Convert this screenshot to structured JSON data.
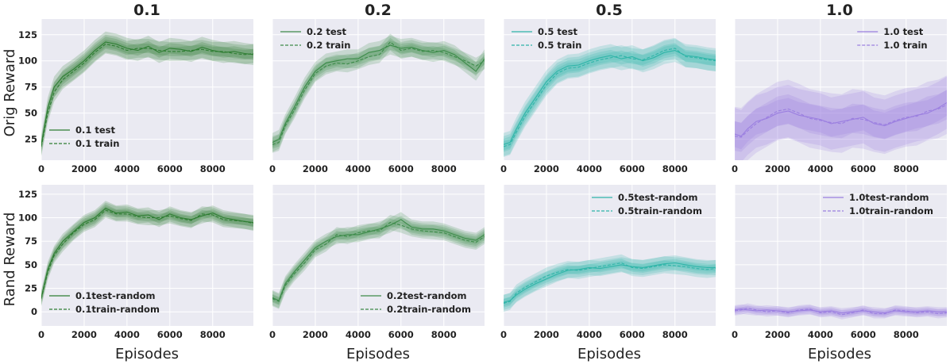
{
  "chart_data": {
    "type": "line",
    "layout": "2x4 grid",
    "column_titles": [
      "0.1",
      "0.2",
      "0.5",
      "1.0"
    ],
    "row_ylabels": [
      "Orig Reward",
      "Rand Reward"
    ],
    "xlabel": "Episodes",
    "xlim": [
      0,
      9900
    ],
    "x_ticks": [
      0,
      2000,
      4000,
      6000,
      8000
    ],
    "x_tick_labels": [
      "0",
      "2000",
      "4000",
      "6000",
      "8000"
    ],
    "rows": [
      {
        "ylim": [
          5,
          140
        ],
        "y_ticks": [
          25,
          50,
          75,
          100,
          125
        ],
        "y_tick_labels": [
          "25",
          "50",
          "75",
          "100",
          "125"
        ]
      },
      {
        "ylim": [
          -15,
          135
        ],
        "y_ticks": [
          0,
          25,
          50,
          75,
          100,
          125
        ],
        "y_tick_labels": [
          "0",
          "25",
          "50",
          "75",
          "100",
          "125"
        ]
      }
    ],
    "panels": [
      {
        "row": 0,
        "col": 0,
        "color": "#2e7d32",
        "legend_position": "bottom-left",
        "series": [
          {
            "name": "0.1 test",
            "style": "solid",
            "x": [
              0,
              300,
              600,
              1000,
              1500,
              2000,
              2500,
              3000,
              3500,
              4000,
              4500,
              5000,
              5500,
              6000,
              6500,
              7000,
              7500,
              8000,
              8500,
              9000,
              9500,
              9900
            ],
            "y": [
              20,
              55,
              75,
              85,
              92,
              100,
              110,
              118,
              116,
              112,
              110,
              114,
              108,
              112,
              111,
              109,
              113,
              110,
              108,
              109,
              107,
              106
            ],
            "band": 10
          },
          {
            "name": "0.1 train",
            "style": "dashed",
            "x": [
              0,
              300,
              600,
              1000,
              1500,
              2000,
              2500,
              3000,
              3500,
              4000,
              4500,
              5000,
              5500,
              6000,
              6500,
              7000,
              7500,
              8000,
              8500,
              9000,
              9500,
              9900
            ],
            "y": [
              18,
              50,
              70,
              82,
              90,
              98,
              108,
              116,
              114,
              110,
              112,
              112,
              110,
              109,
              109,
              110,
              111,
              109,
              109,
              107,
              106,
              107
            ],
            "band": 9
          }
        ]
      },
      {
        "row": 0,
        "col": 1,
        "color": "#3d8b4a",
        "legend_position": "top-left",
        "series": [
          {
            "name": "0.2 test",
            "style": "solid",
            "x": [
              0,
              300,
              600,
              1000,
              1500,
              2000,
              2500,
              3000,
              3500,
              4000,
              4500,
              5000,
              5500,
              6000,
              6500,
              7000,
              7500,
              8000,
              8500,
              9000,
              9500,
              9900
            ],
            "y": [
              22,
              25,
              40,
              55,
              75,
              90,
              98,
              100,
              102,
              102,
              108,
              110,
              115,
              112,
              113,
              110,
              108,
              110,
              106,
              98,
              90,
              102
            ],
            "band": 9
          },
          {
            "name": "0.2 train",
            "style": "dashed",
            "x": [
              0,
              300,
              600,
              1000,
              1500,
              2000,
              2500,
              3000,
              3500,
              4000,
              4500,
              5000,
              5500,
              6000,
              6500,
              7000,
              7500,
              8000,
              8500,
              9000,
              9500,
              9900
            ],
            "y": [
              20,
              22,
              38,
              52,
              72,
              88,
              95,
              98,
              97,
              100,
              104,
              106,
              118,
              110,
              112,
              109,
              110,
              108,
              104,
              100,
              95,
              100
            ],
            "band": 8
          }
        ]
      },
      {
        "row": 0,
        "col": 2,
        "color": "#2fb5a8",
        "legend_position": "top-left",
        "series": [
          {
            "name": "0.5 test",
            "style": "solid",
            "x": [
              0,
              300,
              600,
              1000,
              1500,
              2000,
              2500,
              3000,
              3500,
              4000,
              4500,
              5000,
              5500,
              6000,
              6500,
              7000,
              7500,
              8000,
              8500,
              9000,
              9500,
              9900
            ],
            "y": [
              20,
              22,
              35,
              50,
              65,
              80,
              90,
              95,
              96,
              100,
              103,
              105,
              102,
              104,
              100,
              103,
              108,
              110,
              105,
              104,
              102,
              101
            ],
            "band": 11
          },
          {
            "name": "0.5 train",
            "style": "dashed",
            "x": [
              0,
              300,
              600,
              1000,
              1500,
              2000,
              2500,
              3000,
              3500,
              4000,
              4500,
              5000,
              5500,
              6000,
              6500,
              7000,
              7500,
              8000,
              8500,
              9000,
              9500,
              9900
            ],
            "y": [
              18,
              20,
              32,
              47,
              62,
              77,
              88,
              93,
              94,
              98,
              101,
              103,
              105,
              102,
              101,
              105,
              110,
              112,
              104,
              103,
              101,
              100
            ],
            "band": 10
          }
        ]
      },
      {
        "row": 0,
        "col": 3,
        "color": "#9b7fe0",
        "legend_position": "top-right",
        "series": [
          {
            "name": "1.0 test",
            "style": "solid",
            "x": [
              0,
              300,
              600,
              1000,
              1500,
              2000,
              2500,
              3000,
              3500,
              4000,
              4500,
              5000,
              5500,
              6000,
              6500,
              7000,
              7500,
              8000,
              8500,
              9000,
              9500,
              9900
            ],
            "y": [
              30,
              28,
              35,
              42,
              45,
              50,
              52,
              48,
              46,
              44,
              40,
              42,
              44,
              46,
              40,
              38,
              42,
              45,
              48,
              50,
              55,
              60
            ],
            "band": 25
          },
          {
            "name": "1.0 train",
            "style": "dashed",
            "x": [
              0,
              300,
              600,
              1000,
              1500,
              2000,
              2500,
              3000,
              3500,
              4000,
              4500,
              5000,
              5500,
              6000,
              6500,
              7000,
              7500,
              8000,
              8500,
              9000,
              9500,
              9900
            ],
            "y": [
              28,
              27,
              33,
              40,
              46,
              52,
              54,
              50,
              45,
              43,
              41,
              40,
              45,
              44,
              41,
              39,
              43,
              46,
              47,
              52,
              54,
              58
            ],
            "band": 28
          }
        ]
      },
      {
        "row": 1,
        "col": 0,
        "color": "#2e7d32",
        "legend_position": "bottom-left",
        "series": [
          {
            "name": "0.1test-random",
            "style": "solid",
            "x": [
              0,
              300,
              600,
              1000,
              1500,
              2000,
              2500,
              3000,
              3500,
              4000,
              4500,
              5000,
              5500,
              6000,
              6500,
              7000,
              7500,
              8000,
              8500,
              9000,
              9500,
              9900
            ],
            "y": [
              15,
              45,
              62,
              75,
              85,
              95,
              100,
              110,
              105,
              106,
              102,
              103,
              98,
              104,
              100,
              98,
              102,
              105,
              100,
              98,
              96,
              95
            ],
            "band": 8
          },
          {
            "name": "0.1train-random",
            "style": "dashed",
            "x": [
              0,
              300,
              600,
              1000,
              1500,
              2000,
              2500,
              3000,
              3500,
              4000,
              4500,
              5000,
              5500,
              6000,
              6500,
              7000,
              7500,
              8000,
              8500,
              9000,
              9500,
              9900
            ],
            "y": [
              14,
              42,
              60,
              72,
              84,
              93,
              98,
              108,
              104,
              104,
              101,
              100,
              100,
              102,
              99,
              97,
              104,
              103,
              98,
              97,
              96,
              94
            ],
            "band": 8
          }
        ]
      },
      {
        "row": 1,
        "col": 1,
        "color": "#3d8b4a",
        "legend_position": "bottom-right",
        "series": [
          {
            "name": "0.2test-random",
            "style": "solid",
            "x": [
              0,
              300,
              600,
              1000,
              1500,
              2000,
              2500,
              3000,
              3500,
              4000,
              4500,
              5000,
              5500,
              6000,
              6500,
              7000,
              7500,
              8000,
              8500,
              9000,
              9500,
              9900
            ],
            "y": [
              15,
              12,
              30,
              42,
              55,
              68,
              75,
              80,
              82,
              82,
              85,
              88,
              92,
              98,
              90,
              88,
              88,
              86,
              82,
              78,
              76,
              82
            ],
            "band": 8
          },
          {
            "name": "0.2train-random",
            "style": "dashed",
            "x": [
              0,
              300,
              600,
              1000,
              1500,
              2000,
              2500,
              3000,
              3500,
              4000,
              4500,
              5000,
              5500,
              6000,
              6500,
              7000,
              7500,
              8000,
              8500,
              9000,
              9500,
              9900
            ],
            "y": [
              14,
              11,
              28,
              40,
              52,
              66,
              72,
              82,
              80,
              84,
              86,
              86,
              95,
              92,
              88,
              86,
              85,
              84,
              80,
              76,
              74,
              80
            ],
            "band": 8
          }
        ]
      },
      {
        "row": 1,
        "col": 2,
        "color": "#2fb5a8",
        "legend_position": "top-right",
        "series": [
          {
            "name": "0.5test-random",
            "style": "solid",
            "x": [
              0,
              300,
              600,
              1000,
              1500,
              2000,
              2500,
              3000,
              3500,
              4000,
              4500,
              5000,
              5500,
              6000,
              6500,
              7000,
              7500,
              8000,
              8500,
              9000,
              9500,
              9900
            ],
            "y": [
              10,
              12,
              18,
              24,
              30,
              35,
              40,
              44,
              45,
              47,
              46,
              48,
              50,
              48,
              47,
              49,
              51,
              52,
              50,
              48,
              47,
              47
            ],
            "band": 8
          },
          {
            "name": "0.5train-random",
            "style": "dashed",
            "x": [
              0,
              300,
              600,
              1000,
              1500,
              2000,
              2500,
              3000,
              3500,
              4000,
              4500,
              5000,
              5500,
              6000,
              6500,
              7000,
              7500,
              8000,
              8500,
              9000,
              9500,
              9900
            ],
            "y": [
              9,
              11,
              20,
              26,
              32,
              38,
              42,
              45,
              44,
              46,
              48,
              50,
              52,
              47,
              46,
              48,
              50,
              49,
              48,
              46,
              45,
              46
            ],
            "band": 9
          }
        ]
      },
      {
        "row": 1,
        "col": 3,
        "color": "#9b7fe0",
        "legend_position": "top-right",
        "series": [
          {
            "name": "1.0test-random",
            "style": "solid",
            "x": [
              0,
              300,
              600,
              1000,
              1500,
              2000,
              2500,
              3000,
              3500,
              4000,
              4500,
              5000,
              5500,
              6000,
              6500,
              7000,
              7500,
              8000,
              8500,
              9000,
              9500,
              9900
            ],
            "y": [
              2,
              3,
              2,
              1,
              2,
              1,
              0,
              1,
              2,
              0,
              1,
              -1,
              0,
              1,
              0,
              -1,
              1,
              0,
              0,
              1,
              0,
              0
            ],
            "band": 5
          },
          {
            "name": "1.0train-random",
            "style": "dashed",
            "x": [
              0,
              300,
              600,
              1000,
              1500,
              2000,
              2500,
              3000,
              3500,
              4000,
              4500,
              5000,
              5500,
              6000,
              6500,
              7000,
              7500,
              8000,
              8500,
              9000,
              9500,
              9900
            ],
            "y": [
              1,
              2,
              4,
              2,
              0,
              1,
              -1,
              2,
              3,
              -1,
              0,
              -3,
              -1,
              2,
              -2,
              -2,
              2,
              1,
              -1,
              0,
              -2,
              -1
            ],
            "band": 5
          }
        ]
      }
    ]
  }
}
